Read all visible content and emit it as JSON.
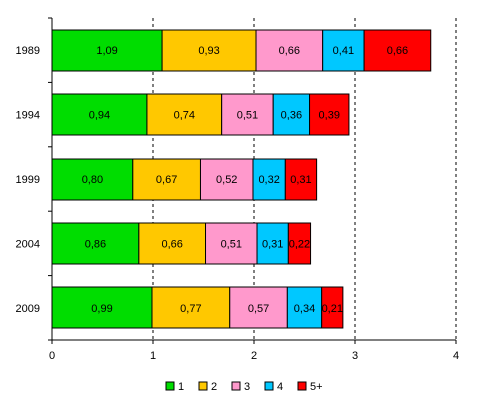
{
  "chart_data": {
    "type": "bar",
    "orientation": "horizontal",
    "stacked": true,
    "title": "",
    "xlabel": "",
    "ylabel": "",
    "categories": [
      "1989",
      "1994",
      "1999",
      "2004",
      "2009"
    ],
    "xlim": [
      0,
      4
    ],
    "xticks": [
      0,
      1,
      2,
      3,
      4
    ],
    "grid": "vertical dashed",
    "legend_position": "bottom",
    "series": [
      {
        "name": "1",
        "color": "#00dd00",
        "values": [
          1.09,
          0.94,
          0.8,
          0.86,
          0.99
        ],
        "labels": [
          "1,09",
          "0,94",
          "0,80",
          "0,86",
          "0,99"
        ]
      },
      {
        "name": "2",
        "color": "#ffc800",
        "values": [
          0.93,
          0.74,
          0.67,
          0.66,
          0.77
        ],
        "labels": [
          "0,93",
          "0,74",
          "0,67",
          "0,66",
          "0,77"
        ]
      },
      {
        "name": "3",
        "color": "#ff99cc",
        "values": [
          0.66,
          0.51,
          0.52,
          0.51,
          0.57
        ],
        "labels": [
          "0,66",
          "0,51",
          "0,52",
          "0,51",
          "0,57"
        ]
      },
      {
        "name": "4",
        "color": "#00c8ff",
        "values": [
          0.41,
          0.36,
          0.32,
          0.31,
          0.34
        ],
        "labels": [
          "0,41",
          "0,36",
          "0,32",
          "0,31",
          "0,34"
        ]
      },
      {
        "name": "5+",
        "color": "#ff0000",
        "values": [
          0.66,
          0.39,
          0.31,
          0.22,
          0.21
        ],
        "labels": [
          "0,66",
          "0,39",
          "0,31",
          "0,22",
          "0,21"
        ]
      }
    ]
  }
}
